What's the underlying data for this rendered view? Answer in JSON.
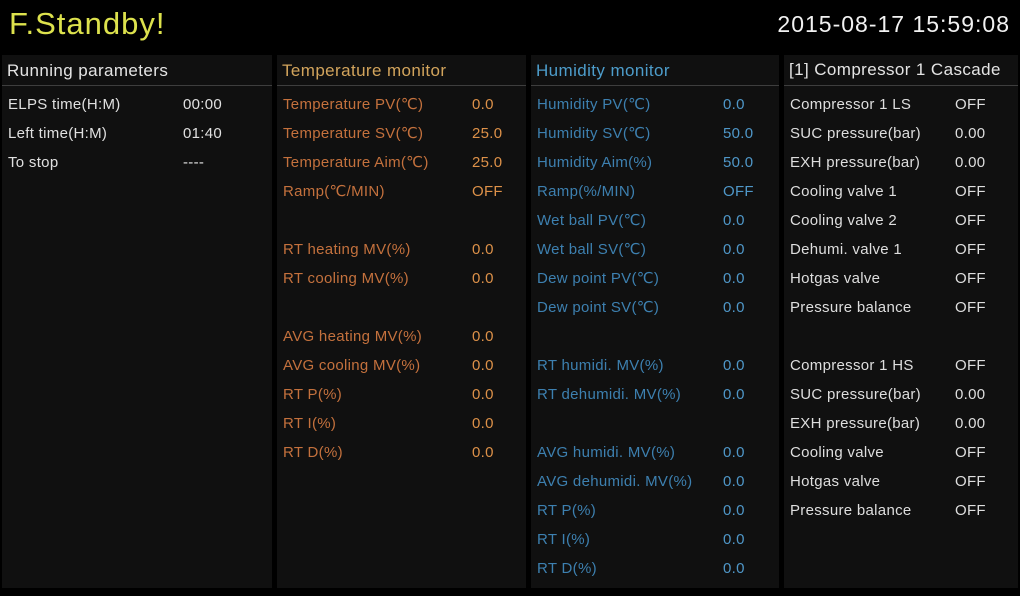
{
  "titlebar": {
    "status": "F.Standby!",
    "datetime": "2015-08-17 15:59:08"
  },
  "colors": {
    "background": "#000000",
    "panel_background": "#101010",
    "status_yellow": "#dde24d",
    "temperature_orange_header": "#d2a45c",
    "temperature_orange_label": "#c4713d",
    "temperature_orange_value": "#dd9149",
    "humidity_blue_header": "#4d9dcb",
    "humidity_blue_label": "#3d80b0",
    "humidity_blue_value": "#4f97c8",
    "neutral_text": "#e0e0e0"
  },
  "panels": [
    {
      "title": "Running parameters",
      "title_line2": "",
      "rows": [
        {
          "label": "ELPS time(H:M)",
          "value": "00:00"
        },
        {
          "label": "Left time(H:M)",
          "value": "01:40"
        },
        {
          "label": "To stop",
          "value": "----"
        }
      ]
    },
    {
      "title": "Temperature monitor",
      "title_line2": "",
      "rows": [
        {
          "label": "Temperature PV(℃)",
          "value": "0.0"
        },
        {
          "label": "Temperature SV(℃)",
          "value": "25.0"
        },
        {
          "label": "Temperature Aim(℃)",
          "value": "25.0"
        },
        {
          "label": "Ramp(℃/MIN)",
          "value": "OFF"
        },
        {
          "label": "",
          "value": ""
        },
        {
          "label": "RT heating MV(%)",
          "value": "0.0"
        },
        {
          "label": "RT cooling MV(%)",
          "value": "0.0"
        },
        {
          "label": "",
          "value": ""
        },
        {
          "label": "AVG heating MV(%)",
          "value": "0.0"
        },
        {
          "label": "AVG cooling MV(%)",
          "value": "0.0"
        },
        {
          "label": "RT P(%)",
          "value": "0.0"
        },
        {
          "label": "RT I(%)",
          "value": "0.0"
        },
        {
          "label": "RT D(%)",
          "value": "0.0"
        }
      ]
    },
    {
      "title": "Humidity monitor",
      "title_line2": "",
      "rows": [
        {
          "label": "Humidity PV(℃)",
          "value": "0.0"
        },
        {
          "label": "Humidity SV(℃)",
          "value": "50.0"
        },
        {
          "label": "Humidity Aim(%)",
          "value": "50.0"
        },
        {
          "label": "Ramp(%/MIN)",
          "value": "OFF"
        },
        {
          "label": "Wet ball PV(℃)",
          "value": "0.0"
        },
        {
          "label": "Wet ball SV(℃)",
          "value": "0.0"
        },
        {
          "label": "Dew point PV(℃)",
          "value": "0.0"
        },
        {
          "label": "Dew point SV(℃)",
          "value": "0.0"
        },
        {
          "label": "",
          "value": ""
        },
        {
          "label": "RT humidi. MV(%)",
          "value": "0.0"
        },
        {
          "label": "RT dehumidi. MV(%)",
          "value": "0.0"
        },
        {
          "label": "",
          "value": ""
        },
        {
          "label": "AVG humidi. MV(%)",
          "value": "0.0"
        },
        {
          "label": "AVG dehumidi. MV(%)",
          "value": "0.0"
        },
        {
          "label": "RT P(%)",
          "value": "0.0"
        },
        {
          "label": "RT I(%)",
          "value": "0.0"
        },
        {
          "label": "RT D(%)",
          "value": "0.0"
        }
      ]
    },
    {
      "title": "[1] Compressor 1",
      "title_line2": "Cascade",
      "rows": [
        {
          "label": "Compressor 1 LS",
          "value": "OFF"
        },
        {
          "label": "SUC pressure(bar)",
          "value": "0.00"
        },
        {
          "label": "EXH pressure(bar)",
          "value": "0.00"
        },
        {
          "label": "Cooling valve 1",
          "value": "OFF"
        },
        {
          "label": "Cooling valve 2",
          "value": "OFF"
        },
        {
          "label": "Dehumi. valve 1",
          "value": "OFF"
        },
        {
          "label": "Hotgas valve",
          "value": "OFF"
        },
        {
          "label": "Pressure balance",
          "value": "OFF"
        },
        {
          "label": "",
          "value": ""
        },
        {
          "label": "Compressor 1 HS",
          "value": "OFF"
        },
        {
          "label": "SUC pressure(bar)",
          "value": "0.00"
        },
        {
          "label": "EXH pressure(bar)",
          "value": "0.00"
        },
        {
          "label": "Cooling valve",
          "value": "OFF"
        },
        {
          "label": "Hotgas valve",
          "value": "OFF"
        },
        {
          "label": "Pressure balance",
          "value": "OFF"
        }
      ]
    }
  ]
}
